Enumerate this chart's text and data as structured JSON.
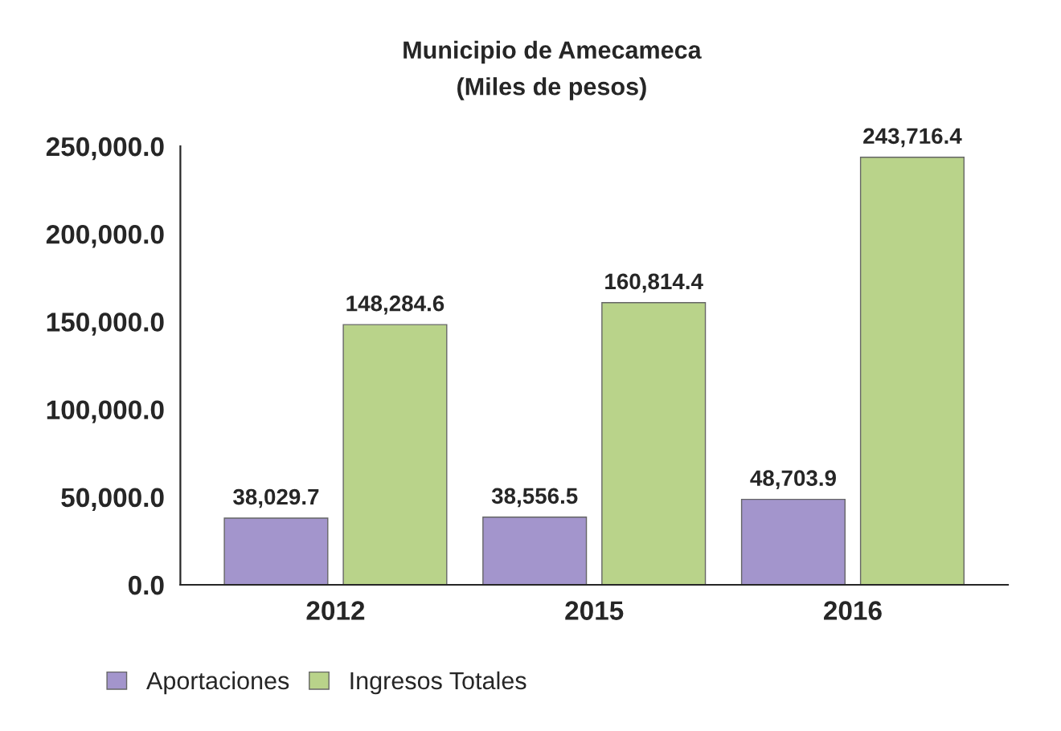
{
  "chart_data": {
    "type": "bar",
    "title": "Municipio de Amecameca",
    "subtitle": "(Miles de pesos)",
    "categories": [
      "2012",
      "2015",
      "2016"
    ],
    "series": [
      {
        "name": "Aportaciones",
        "color": "#a395cc",
        "values": [
          38029.7,
          38556.5,
          48703.9
        ],
        "value_labels": [
          "38,029.7",
          "38,556.5",
          "48,703.9"
        ]
      },
      {
        "name": "Ingresos Totales",
        "color": "#b9d38a",
        "values": [
          148284.6,
          160814.4,
          243716.4
        ],
        "value_labels": [
          "148,284.6",
          "160,814.4",
          "243,716.4"
        ]
      }
    ],
    "ylim": [
      0,
      250000
    ],
    "yticks": [
      {
        "value": 0,
        "label": "0.0"
      },
      {
        "value": 50000,
        "label": "50,000.0"
      },
      {
        "value": 100000,
        "label": "100,000.0"
      },
      {
        "value": 150000,
        "label": "150,000.0"
      },
      {
        "value": 200000,
        "label": "200,000.0"
      },
      {
        "value": 250000,
        "label": "250,000.0"
      }
    ],
    "grid": false,
    "legend": "bottom left"
  }
}
